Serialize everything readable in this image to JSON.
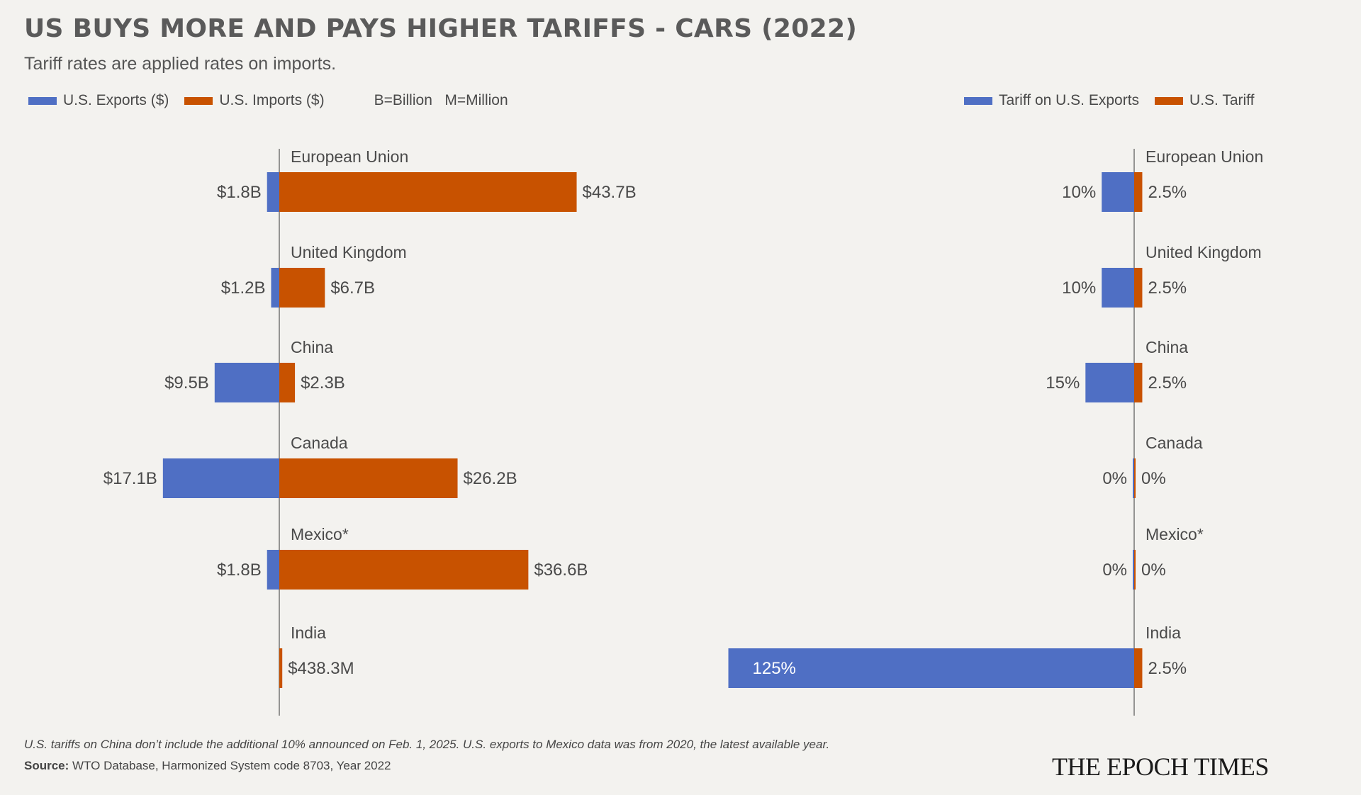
{
  "header": {
    "title": "US BUYS MORE AND PAYS HIGHER TARIFFS - CARS (2022)",
    "subtitle": "Tariff rates are applied rates on imports."
  },
  "legend_left": {
    "exports_label": "U.S. Exports ($)",
    "imports_label": "U.S. Imports ($)",
    "units_note": "B=Billion   M=Million"
  },
  "legend_right": {
    "tariff_exports_label": "Tariff on U.S. Exports",
    "us_tariff_label": "U.S. Tariff"
  },
  "colors": {
    "blue": "#4f6fc4",
    "orange": "#c85200"
  },
  "chart_data": [
    {
      "type": "bar",
      "orientation": "horizontal-diverging",
      "categories": [
        "European Union",
        "United Kingdom",
        "China",
        "Canada",
        "Mexico*",
        "India"
      ],
      "series": [
        {
          "name": "U.S. Exports ($)",
          "values": [
            1.8,
            1.2,
            9.5,
            17.1,
            1.8,
            0
          ],
          "labels": [
            "$1.8B",
            "$1.2B",
            "$9.5B",
            "$17.1B",
            "$1.8B",
            ""
          ]
        },
        {
          "name": "U.S. Imports ($)",
          "values": [
            43.7,
            6.7,
            2.3,
            26.2,
            36.6,
            0.4383
          ],
          "labels": [
            "$43.7B",
            "$6.7B",
            "$2.3B",
            "$26.2B",
            "$36.6B",
            "$438.3M"
          ]
        }
      ]
    },
    {
      "type": "bar",
      "orientation": "horizontal-diverging",
      "categories": [
        "European Union",
        "United Kingdom",
        "China",
        "Canada",
        "Mexico*",
        "India"
      ],
      "series": [
        {
          "name": "Tariff on U.S. Exports",
          "values": [
            10,
            10,
            15,
            0,
            0,
            125
          ],
          "labels": [
            "10%",
            "10%",
            "15%",
            "0%",
            "0%",
            "125%"
          ]
        },
        {
          "name": "U.S. Tariff",
          "values": [
            2.5,
            2.5,
            2.5,
            0,
            0,
            2.5
          ],
          "labels": [
            "2.5%",
            "2.5%",
            "2.5%",
            "0%",
            "0%",
            "2.5%"
          ]
        }
      ]
    }
  ],
  "footer": {
    "footnote": "U.S. tariffs on China don’t include the additional 10% announced on Feb. 1, 2025. U.S. exports to Mexico data was from 2020, the latest available year.",
    "source_label": "Source:",
    "source_text": " WTO Database, Harmonized System code 8703, Year 2022",
    "brand": "THE EPOCH TIMES"
  }
}
